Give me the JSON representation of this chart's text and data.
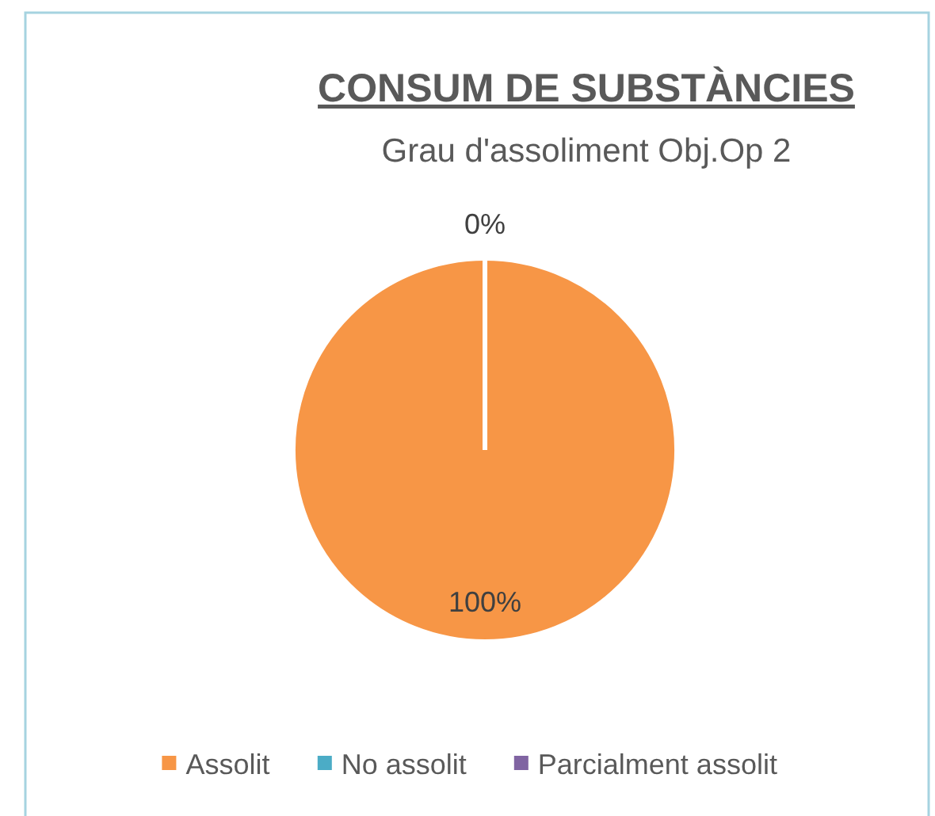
{
  "chart_data": {
    "type": "pie",
    "title": "CONSUM DE SUBSTÀNCIES",
    "subtitle": "Grau d'assoliment Obj.Op 2",
    "categories": [
      "Assolit",
      "No assolit",
      "Parcialment assolit"
    ],
    "values": [
      100,
      0,
      0
    ],
    "colors": [
      "#f79646",
      "#4bacc6",
      "#8064a2"
    ],
    "value_labels": [
      "100%",
      "0%",
      null
    ],
    "legend": "bottom"
  }
}
